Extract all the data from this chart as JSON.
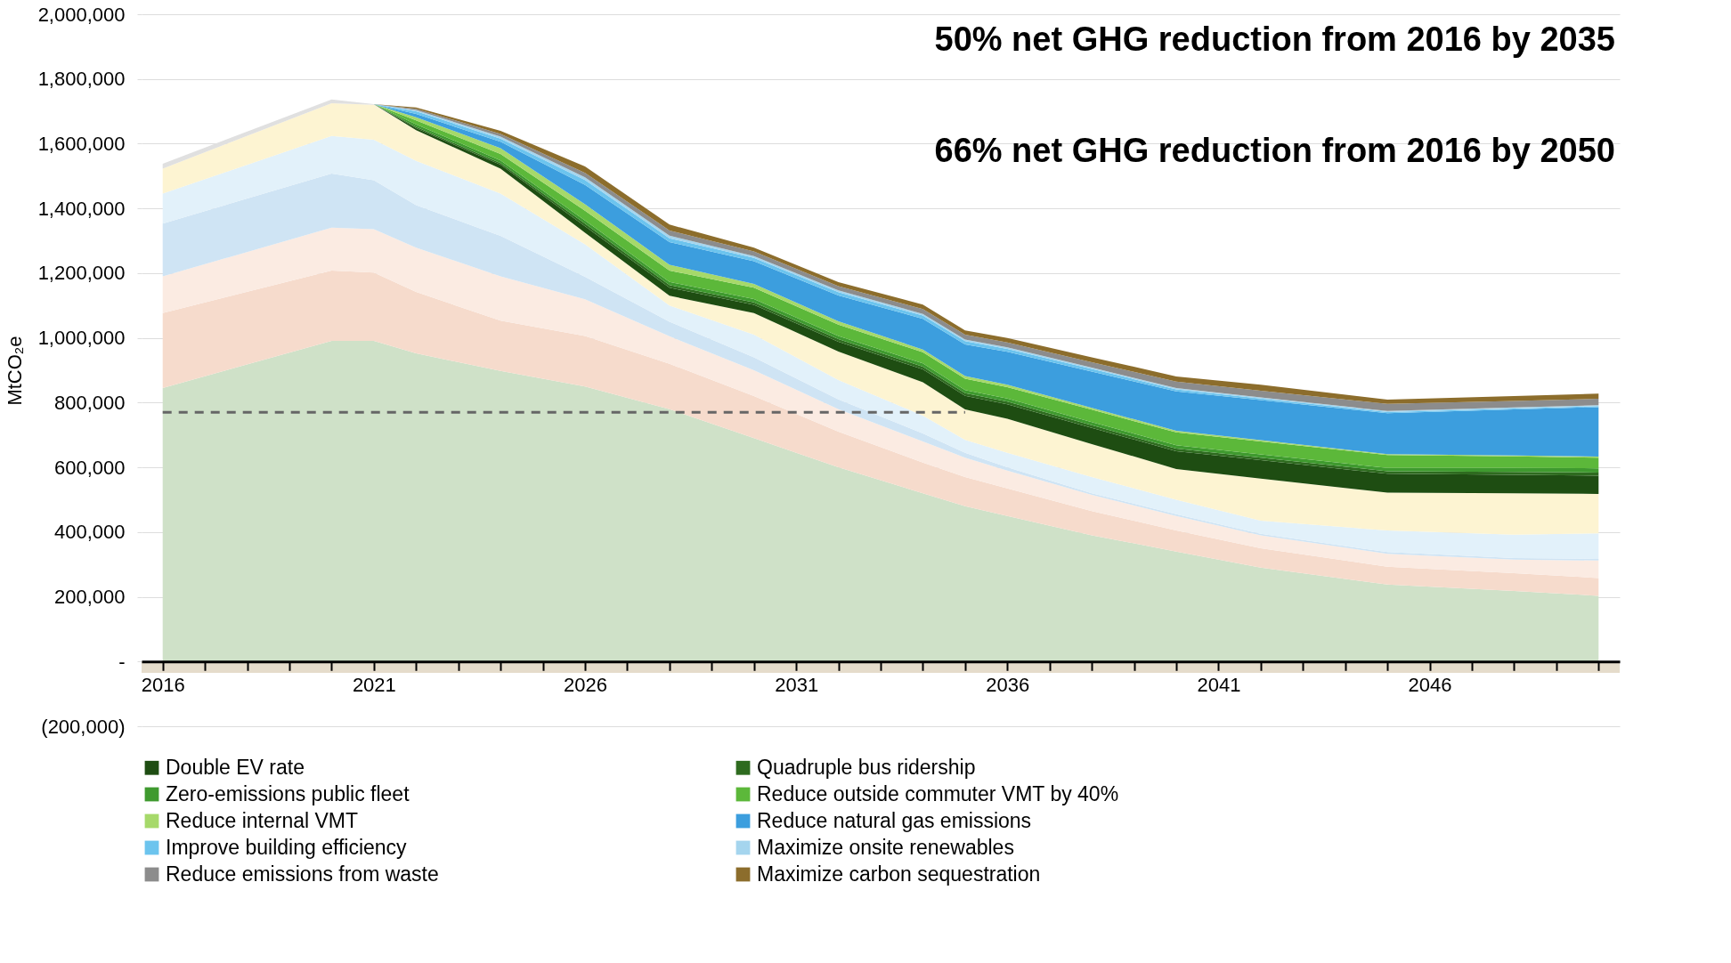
{
  "chart_data": {
    "type": "area",
    "stacked": true,
    "ylabel": "MtCO₂e",
    "grid": "y",
    "legend": "bottom",
    "annotations": [
      "50% net GHG reduction from 2016 by 2035",
      "66% net GHG reduction from 2016 by 2050"
    ],
    "x": [
      2016,
      2020,
      2021,
      2022,
      2024,
      2026,
      2028,
      2030,
      2032,
      2034,
      2035,
      2036,
      2038,
      2040,
      2042,
      2045,
      2048,
      2050
    ],
    "xlim": [
      2015.5,
      2050.5
    ],
    "xticks": [
      2016,
      {
        "value": 2017,
        "label": null
      },
      {
        "value": 2018,
        "label": null
      },
      {
        "value": 2019,
        "label": null
      },
      {
        "value": 2020,
        "label": null
      },
      2021,
      {
        "value": 2022,
        "label": null
      },
      {
        "value": 2023,
        "label": null
      },
      {
        "value": 2024,
        "label": null
      },
      {
        "value": 2025,
        "label": null
      },
      2026,
      {
        "value": 2027,
        "label": null
      },
      {
        "value": 2028,
        "label": null
      },
      {
        "value": 2029,
        "label": null
      },
      {
        "value": 2030,
        "label": null
      },
      2031,
      {
        "value": 2032,
        "label": null
      },
      {
        "value": 2033,
        "label": null
      },
      {
        "value": 2034,
        "label": null
      },
      {
        "value": 2035,
        "label": null
      },
      2036,
      {
        "value": 2037,
        "label": null
      },
      {
        "value": 2038,
        "label": null
      },
      {
        "value": 2039,
        "label": null
      },
      {
        "value": 2040,
        "label": null
      },
      2041,
      {
        "value": 2042,
        "label": null
      },
      {
        "value": 2043,
        "label": null
      },
      {
        "value": 2044,
        "label": null
      },
      {
        "value": 2045,
        "label": null
      },
      2046,
      {
        "value": 2047,
        "label": null
      },
      {
        "value": 2048,
        "label": null
      },
      {
        "value": 2049,
        "label": null
      },
      {
        "value": 2050,
        "label": null
      }
    ],
    "ylim": [
      -200000,
      2000000
    ],
    "bands": [
      {
        "axis": "y",
        "from": -35000,
        "to": 0,
        "color": "#e5dccb"
      }
    ],
    "yticks": [
      {
        "value": -200000,
        "label": "(200,000)"
      },
      {
        "value": 0,
        "label": "-"
      },
      {
        "value": 200000,
        "label": "200,000"
      },
      {
        "value": 400000,
        "label": "400,000"
      },
      {
        "value": 600000,
        "label": "600,000"
      },
      {
        "value": 800000,
        "label": "800,000"
      },
      {
        "value": 1000000,
        "label": "1,000,000"
      },
      {
        "value": 1200000,
        "label": "1,200,000"
      },
      {
        "value": 1400000,
        "label": "1,400,000"
      },
      {
        "value": 1600000,
        "label": "1,600,000"
      },
      {
        "value": 1800000,
        "label": "1,800,000"
      },
      {
        "value": 2000000,
        "label": "2,000,000"
      }
    ],
    "series": [
      {
        "color": "#cfe1c8",
        "values": [
          845000,
          991000,
          991000,
          952000,
          898000,
          850000,
          780000,
          690000,
          600000,
          520000,
          480000,
          450000,
          390000,
          340000,
          290000,
          238000,
          218000,
          203000
        ]
      },
      {
        "color": "#f6dbcc",
        "values": [
          232000,
          217000,
          211000,
          190000,
          155000,
          156000,
          140000,
          130000,
          110000,
          95000,
          90000,
          85000,
          75000,
          65000,
          60000,
          55000,
          55000,
          55000
        ]
      },
      {
        "color": "#fbebe2",
        "values": [
          113000,
          133000,
          134000,
          137000,
          137000,
          113000,
          85000,
          80000,
          70000,
          65000,
          60000,
          55000,
          50000,
          45000,
          40000,
          40000,
          42000,
          54000
        ]
      },
      {
        "color": "#cfe4f4",
        "values": [
          163000,
          167000,
          151000,
          131000,
          125000,
          70000,
          45000,
          40000,
          30000,
          25000,
          15000,
          10000,
          5000,
          5000,
          5000,
          5000,
          5000,
          5000
        ]
      },
      {
        "color": "#e2f1fa",
        "values": [
          93000,
          116000,
          125000,
          137000,
          131000,
          100000,
          50000,
          70000,
          60000,
          55000,
          40000,
          45000,
          50000,
          45000,
          40000,
          67000,
          72000,
          79000
        ]
      },
      {
        "color": "#fdf4d2",
        "values": [
          77000,
          101000,
          108000,
          95000,
          77000,
          36000,
          30000,
          67000,
          88000,
          103000,
          94000,
          105000,
          102000,
          95000,
          130000,
          117000,
          128000,
          122000
        ]
      },
      {
        "color": "#e0e0e0",
        "values": [
          15000,
          12000,
          2000,
          0,
          0,
          0,
          0,
          0,
          0,
          0,
          0,
          0,
          0,
          0,
          0,
          0,
          0,
          0
        ]
      },
      {
        "name": "Double EV rate",
        "color": "#1e4d12",
        "values": [
          null,
          null,
          0,
          6000,
          12000,
          20000,
          25000,
          25000,
          30000,
          40000,
          42000,
          45000,
          50000,
          55000,
          57000,
          58000,
          57000,
          56000
        ]
      },
      {
        "name": "Quadruple bus ridership",
        "color": "#2e6b1f",
        "values": [
          null,
          null,
          0,
          4000,
          5000,
          8000,
          8000,
          8000,
          8000,
          8000,
          8000,
          8000,
          8000,
          8000,
          8000,
          8000,
          9000,
          10000
        ]
      },
      {
        "name": "Zero-emissions public fleet",
        "color": "#3f9a2f",
        "values": [
          null,
          null,
          0,
          8000,
          8000,
          10000,
          10000,
          10000,
          10000,
          10000,
          10000,
          10000,
          10000,
          10000,
          10000,
          10000,
          12000,
          13000
        ]
      },
      {
        "name": "Reduce outside commuter VMT by 40%",
        "color": "#5cb83a",
        "values": [
          null,
          null,
          0,
          12000,
          20000,
          30000,
          35000,
          35000,
          35000,
          35000,
          35000,
          35000,
          38000,
          40000,
          40000,
          40000,
          36000,
          33000
        ]
      },
      {
        "name": "Reduce internal VMT",
        "color": "#a6d96a",
        "values": [
          null,
          null,
          0,
          10000,
          18000,
          20000,
          18000,
          12000,
          10000,
          8000,
          8000,
          7000,
          6000,
          5000,
          4000,
          3000,
          3000,
          3000
        ]
      },
      {
        "name": "Reduce natural gas emissions",
        "color": "#3c9ede",
        "values": [
          null,
          null,
          0,
          10000,
          20000,
          60000,
          70000,
          70000,
          80000,
          95000,
          98000,
          102000,
          112000,
          122000,
          124000,
          126000,
          142000,
          153000
        ]
      },
      {
        "name": "Improve building efficiency",
        "color": "#6cc4ee",
        "values": [
          null,
          null,
          0,
          8000,
          10000,
          15000,
          12000,
          10000,
          10000,
          10000,
          10000,
          9000,
          8000,
          6000,
          5000,
          4000,
          3000,
          3000
        ]
      },
      {
        "name": "Maximize onsite renewables",
        "color": "#a5d5ee",
        "values": [
          null,
          null,
          0,
          4000,
          6000,
          8000,
          8000,
          6000,
          6000,
          5000,
          5000,
          5000,
          4000,
          4000,
          3000,
          3000,
          3000,
          3000
        ]
      },
      {
        "name": "Reduce emissions from waste",
        "color": "#8c8c8c",
        "values": [
          null,
          null,
          0,
          4000,
          8000,
          14000,
          16000,
          14000,
          13000,
          15000,
          15000,
          15000,
          17000,
          20000,
          21000,
          22000,
          20000,
          20000
        ]
      },
      {
        "name": "Maximize carbon sequestration",
        "color": "#8c6d2c",
        "values": [
          null,
          null,
          0,
          4000,
          10000,
          20000,
          18000,
          12000,
          12000,
          14000,
          13000,
          14000,
          15000,
          16000,
          18000,
          13000,
          15000,
          16000
        ]
      },
      {
        "type": "line",
        "x": [
          2016,
          2035
        ],
        "values": [
          770000,
          770000
        ],
        "color": "#666666",
        "line_style": "dashed"
      }
    ]
  }
}
